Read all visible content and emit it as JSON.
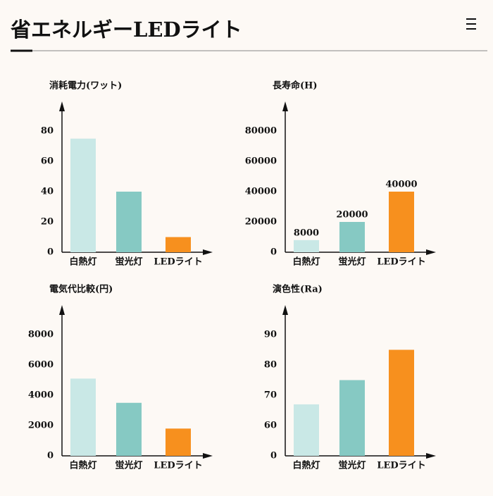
{
  "header": {
    "title": "省エネルギーLEDライト"
  },
  "chart_data": [
    {
      "type": "bar",
      "title": "消耗電力(ワット)",
      "categories": [
        "白熱灯",
        "蛍光灯",
        "LEDライト"
      ],
      "values": [
        75,
        40,
        10
      ],
      "colors": [
        "#c9e8e6",
        "#86c9c3",
        "#f7901e"
      ],
      "ylim": [
        0,
        80
      ],
      "yticks": [
        0,
        20,
        40,
        60,
        80
      ]
    },
    {
      "type": "bar",
      "title": "長寿命(H)",
      "categories": [
        "白熱灯",
        "蛍光灯",
        "LEDライト"
      ],
      "values": [
        8000,
        20000,
        40000
      ],
      "colors": [
        "#c9e8e6",
        "#86c9c3",
        "#f7901e"
      ],
      "ylim": [
        0,
        80000
      ],
      "yticks": [
        0,
        20000,
        40000,
        60000,
        80000
      ],
      "value_labels_shown": true
    },
    {
      "type": "bar",
      "title": "電気代比較(円)",
      "categories": [
        "白熱灯",
        "蛍光灯",
        "LEDライト"
      ],
      "values": [
        5100,
        3500,
        1800
      ],
      "colors": [
        "#c9e8e6",
        "#86c9c3",
        "#f7901e"
      ],
      "ylim": [
        0,
        8000
      ],
      "yticks": [
        0,
        2000,
        4000,
        6000,
        8000
      ]
    },
    {
      "type": "bar",
      "title": "演色性(Ra)",
      "categories": [
        "白熱灯",
        "蛍光灯",
        "LEDライト"
      ],
      "values": [
        67,
        75,
        85
      ],
      "colors": [
        "#c9e8e6",
        "#86c9c3",
        "#f7901e"
      ],
      "ylim": [
        0,
        90
      ],
      "yticks": [
        0,
        60,
        70,
        80,
        90
      ],
      "axis_break": true
    }
  ]
}
